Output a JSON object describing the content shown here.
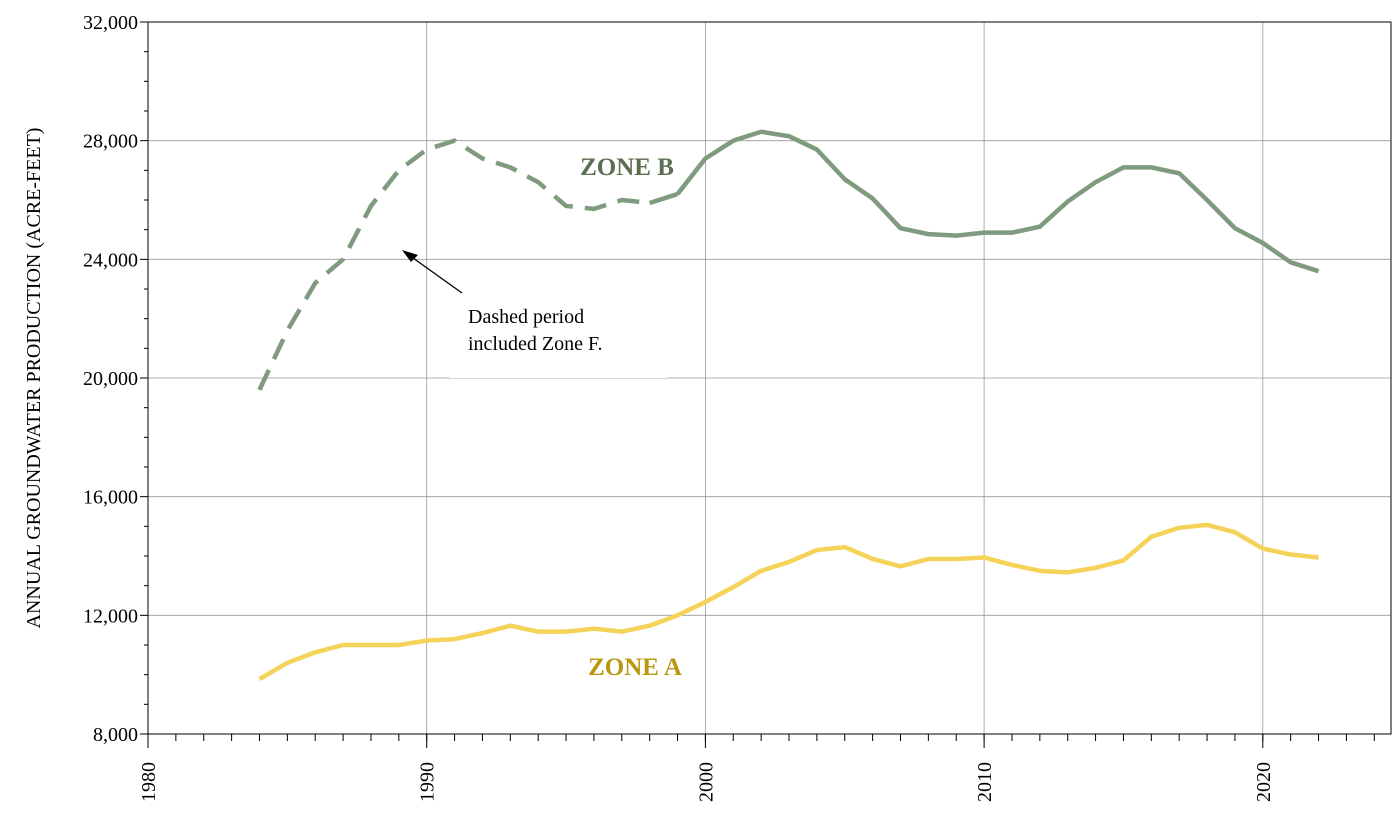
{
  "chart_data": {
    "type": "line",
    "y_label": "ANNUAL GROUNDWATER PRODUCTION (ACRE-FEET)",
    "annotation": [
      "Dashed period",
      "included Zone F."
    ],
    "xlim": [
      1980,
      2024.6
    ],
    "xticks": [
      1980,
      1990,
      2000,
      2010,
      2020
    ],
    "ylim": [
      8000,
      32000
    ],
    "yticks": [
      {
        "value": 8000,
        "label": "8,000"
      },
      {
        "value": 12000,
        "label": "12,000"
      },
      {
        "value": 16000,
        "label": "16,000"
      },
      {
        "value": 20000,
        "label": "20,000"
      },
      {
        "value": 24000,
        "label": "24,000"
      },
      {
        "value": 28000,
        "label": "28,000"
      },
      {
        "value": 32000,
        "label": "32,000"
      }
    ],
    "grid": true,
    "x": [
      1984,
      1985,
      1986,
      1987,
      1988,
      1989,
      1990,
      1991,
      1992,
      1993,
      1994,
      1995,
      1996,
      1997,
      1998,
      1999,
      2000,
      2001,
      2002,
      2003,
      2004,
      2005,
      2006,
      2007,
      2008,
      2009,
      2010,
      2011,
      2012,
      2013,
      2014,
      2015,
      2016,
      2017,
      2018,
      2019,
      2020,
      2021,
      2022
    ],
    "series": [
      {
        "name": "ZONE B",
        "color": "#7f9a7f",
        "label_color": "#5a7050",
        "dashed_through": 1998,
        "values": [
          19600,
          21600,
          23200,
          24000,
          25800,
          27000,
          27700,
          28000,
          27400,
          27100,
          26600,
          25800,
          25700,
          26000,
          25900,
          26200,
          27400,
          28000,
          28300,
          28150,
          27700,
          26700,
          26050,
          25050,
          24850,
          24800,
          24900,
          24900,
          25100,
          25950,
          26600,
          27100,
          27100,
          26900,
          26000,
          25050,
          24550,
          23900,
          23600
        ]
      },
      {
        "name": "ZONE A",
        "color": "#f5d258",
        "label_color": "#b8980f",
        "values": [
          9850,
          10400,
          10750,
          11000,
          11000,
          11000,
          11150,
          11200,
          11400,
          11650,
          11450,
          11450,
          11550,
          11450,
          11650,
          12000,
          12450,
          12950,
          13500,
          13800,
          14200,
          14300,
          13900,
          13650,
          13900,
          13900,
          13950,
          13700,
          13500,
          13450,
          13600,
          13850,
          14650,
          14950,
          15050,
          14800,
          14250,
          14050,
          13950
        ]
      }
    ]
  }
}
